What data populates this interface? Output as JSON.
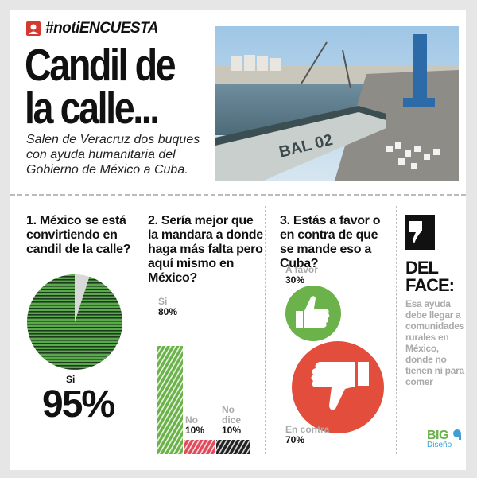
{
  "tag": "#notiENCUESTA",
  "headline": "Candil de\nla calle...",
  "subtitle": "Salen de Veracruz dos buques con ayuda humanitaria del Gobierno de México a Cuba.",
  "photo": {
    "ship_label": "BAL 02"
  },
  "q1": {
    "question": "1. México se está convirtiendo en candil de la calle?",
    "answer_label": "Si",
    "answer_value": "95%",
    "share": 0.95
  },
  "q2": {
    "question": "2. Sería mejor que la mandara a donde haga más falta pero aquí mismo en México?",
    "bars": [
      {
        "label": "Si",
        "value": "80%",
        "fraction": 0.8
      },
      {
        "label": "No",
        "value": "10%",
        "fraction": 0.1
      },
      {
        "label": "No dice",
        "value": "10%",
        "fraction": 0.1
      }
    ]
  },
  "q3": {
    "question": "3. Estás a favor o en contra de que se mande eso a Cuba?",
    "favor_label": "A favor",
    "favor_value": "30%",
    "contra_label": "En contra",
    "contra_value": "70%"
  },
  "del_face": {
    "title": "DEL FACE:",
    "comment": "Esa ayuda debe llegar a comunidades rurales en México, donde no tienen ni para comer"
  },
  "logo": {
    "name": "BIG",
    "sub": "Diseño"
  },
  "colors": {
    "green": "#6bb24a",
    "red": "#e34d3c",
    "dark": "#111111"
  }
}
